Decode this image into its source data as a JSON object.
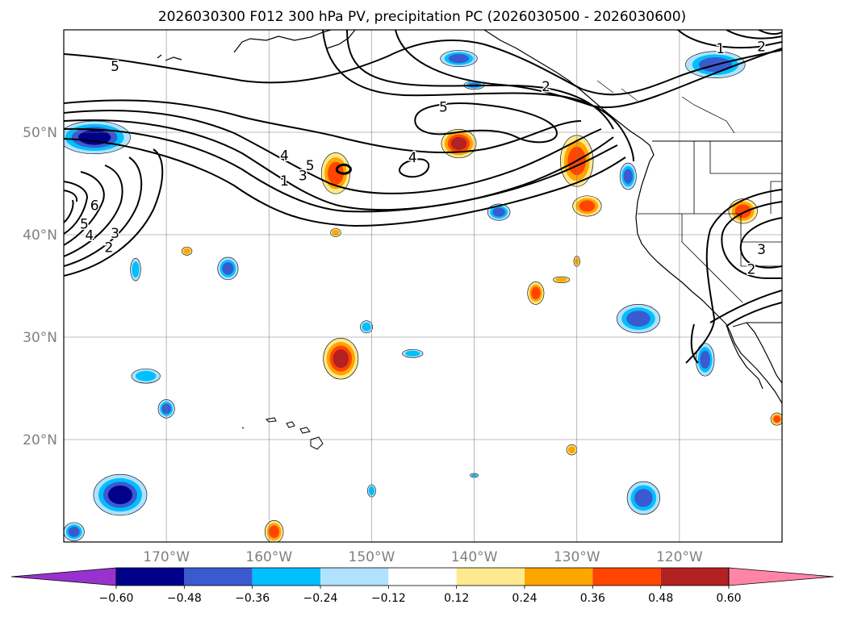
{
  "chart_data": {
    "type": "heatmap",
    "title": "2026030300 F012 300 hPa PV, precipitation PC (2026030500 - 2026030600)",
    "map": {
      "lon_range": [
        -180,
        -110
      ],
      "lat_range": [
        10,
        60
      ],
      "lon_ticks": [
        {
          "lon": -170,
          "label": "170°W"
        },
        {
          "lon": -160,
          "label": "160°W"
        },
        {
          "lon": -150,
          "label": "150°W"
        },
        {
          "lon": -140,
          "label": "140°W"
        },
        {
          "lon": -130,
          "label": "130°W"
        },
        {
          "lon": -120,
          "label": "120°W"
        }
      ],
      "lat_ticks": [
        {
          "lat": 50,
          "label": "50°N"
        },
        {
          "lat": 40,
          "label": "40°N"
        },
        {
          "lat": 30,
          "label": "30°N"
        },
        {
          "lat": 20,
          "label": "20°N"
        }
      ],
      "gridlines": true
    },
    "colorbar": {
      "orientation": "horizontal",
      "extend": "both",
      "levels": [
        -0.6,
        -0.48,
        -0.36,
        -0.24,
        -0.12,
        0.12,
        0.24,
        0.36,
        0.48,
        0.6
      ],
      "tick_labels": [
        "−0.60",
        "−0.48",
        "−0.36",
        "−0.24",
        "−0.12",
        "0.12",
        "0.24",
        "0.36",
        "0.48",
        "0.60"
      ],
      "colors": [
        "#9932cc",
        "#00008b",
        "#3a5bd0",
        "#00bfff",
        "#b0e2ff",
        "#ffffff",
        "#ffe98f",
        "#ffa500",
        "#ff4500",
        "#b22222",
        "#ff85a8"
      ]
    },
    "contour_labels": [
      {
        "text": "5",
        "lon": -175,
        "lat": 56
      },
      {
        "text": "2",
        "lon": -133,
        "lat": 54
      },
      {
        "text": "1",
        "lon": -116,
        "lat": 57.7
      },
      {
        "text": "2",
        "lon": -112,
        "lat": 57.9
      },
      {
        "text": "5",
        "lon": -143,
        "lat": 52
      },
      {
        "text": "4",
        "lon": -146,
        "lat": 47.1
      },
      {
        "text": "5",
        "lon": -156,
        "lat": 46.3
      },
      {
        "text": "4",
        "lon": -158.5,
        "lat": 47.3
      },
      {
        "text": "3",
        "lon": -156.7,
        "lat": 45.3
      },
      {
        "text": "1",
        "lon": -158.5,
        "lat": 44.8
      },
      {
        "text": "6",
        "lon": -177,
        "lat": 42.4
      },
      {
        "text": "5",
        "lon": -178,
        "lat": 40.6
      },
      {
        "text": "4",
        "lon": -177.5,
        "lat": 39.5
      },
      {
        "text": "3",
        "lon": -175,
        "lat": 39.7
      },
      {
        "text": "2",
        "lon": -175.6,
        "lat": 38.3
      },
      {
        "text": "3",
        "lon": -112,
        "lat": 38.1
      },
      {
        "text": "2",
        "lon": -113,
        "lat": 36.2
      }
    ],
    "precip_features": [
      {
        "lon": -177,
        "lat": 49.5,
        "rx": 3.5,
        "ry": 1.6,
        "value": -0.55
      },
      {
        "lon": -141.5,
        "lat": 57.2,
        "rx": 1.8,
        "ry": 0.8,
        "value": -0.45
      },
      {
        "lon": -140,
        "lat": 54.6,
        "rx": 1.0,
        "ry": 0.4,
        "value": -0.4
      },
      {
        "lon": -116.5,
        "lat": 56.6,
        "rx": 2.9,
        "ry": 1.3,
        "value": -0.45
      },
      {
        "lon": -141.5,
        "lat": 48.9,
        "rx": 1.7,
        "ry": 1.4,
        "value": 0.5
      },
      {
        "lon": -153.5,
        "lat": 46.0,
        "rx": 1.4,
        "ry": 2.0,
        "value": 0.45
      },
      {
        "lon": -130,
        "lat": 47.2,
        "rx": 1.6,
        "ry": 2.5,
        "value": 0.4
      },
      {
        "lon": -129,
        "lat": 42.8,
        "rx": 1.4,
        "ry": 1.0,
        "value": 0.38
      },
      {
        "lon": -125,
        "lat": 45.7,
        "rx": 0.8,
        "ry": 1.3,
        "value": -0.4
      },
      {
        "lon": -137.6,
        "lat": 42.2,
        "rx": 1.1,
        "ry": 0.8,
        "value": -0.38
      },
      {
        "lon": -113.8,
        "lat": 42.3,
        "rx": 1.4,
        "ry": 1.2,
        "value": 0.4
      },
      {
        "lon": -153.5,
        "lat": 40.2,
        "rx": 0.5,
        "ry": 0.4,
        "value": 0.3
      },
      {
        "lon": -168,
        "lat": 38.4,
        "rx": 0.5,
        "ry": 0.4,
        "value": 0.25
      },
      {
        "lon": -173,
        "lat": 36.6,
        "rx": 0.5,
        "ry": 1.1,
        "value": -0.3
      },
      {
        "lon": -164,
        "lat": 36.7,
        "rx": 1.0,
        "ry": 1.1,
        "value": -0.42
      },
      {
        "lon": -134,
        "lat": 34.3,
        "rx": 0.8,
        "ry": 1.1,
        "value": 0.4
      },
      {
        "lon": -131.5,
        "lat": 35.6,
        "rx": 0.8,
        "ry": 0.3,
        "value": 0.25
      },
      {
        "lon": -130,
        "lat": 37.4,
        "rx": 0.3,
        "ry": 0.5,
        "value": 0.25
      },
      {
        "lon": -124,
        "lat": 31.8,
        "rx": 2.1,
        "ry": 1.4,
        "value": -0.45
      },
      {
        "lon": -153,
        "lat": 27.9,
        "rx": 1.7,
        "ry": 2.0,
        "value": 0.5
      },
      {
        "lon": -150.5,
        "lat": 31.0,
        "rx": 0.6,
        "ry": 0.6,
        "value": -0.35
      },
      {
        "lon": -146,
        "lat": 28.4,
        "rx": 1.0,
        "ry": 0.4,
        "value": -0.3
      },
      {
        "lon": -172,
        "lat": 26.2,
        "rx": 1.4,
        "ry": 0.7,
        "value": -0.35
      },
      {
        "lon": -170,
        "lat": 23.0,
        "rx": 0.8,
        "ry": 0.9,
        "value": -0.4
      },
      {
        "lon": -117.5,
        "lat": 27.8,
        "rx": 0.9,
        "ry": 1.6,
        "value": -0.45
      },
      {
        "lon": -130.5,
        "lat": 19.0,
        "rx": 0.5,
        "ry": 0.5,
        "value": 0.3
      },
      {
        "lon": -174.5,
        "lat": 14.6,
        "rx": 2.6,
        "ry": 2.0,
        "value": -0.55
      },
      {
        "lon": -123.5,
        "lat": 14.3,
        "rx": 1.6,
        "ry": 1.6,
        "value": -0.45
      },
      {
        "lon": -159.5,
        "lat": 11.0,
        "rx": 0.9,
        "ry": 1.1,
        "value": 0.4
      },
      {
        "lon": -179,
        "lat": 11.0,
        "rx": 1.0,
        "ry": 0.9,
        "value": -0.4
      },
      {
        "lon": -110.5,
        "lat": 22.0,
        "rx": 0.6,
        "ry": 0.6,
        "value": 0.4
      },
      {
        "lon": -150,
        "lat": 15.0,
        "rx": 0.4,
        "ry": 0.6,
        "value": -0.3
      },
      {
        "lon": -140,
        "lat": 16.5,
        "rx": 0.4,
        "ry": 0.2,
        "value": -0.25
      }
    ]
  }
}
